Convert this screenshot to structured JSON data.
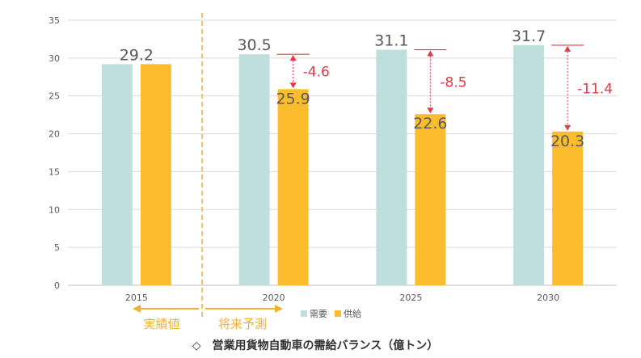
{
  "chart_data": {
    "type": "bar",
    "title": "◇　営業用貨物自動車の需給バランス（億トン）",
    "categories": [
      "2015",
      "2020",
      "2025",
      "2030"
    ],
    "series": [
      {
        "name": "需要",
        "color": "#bfdfde",
        "values": [
          29.2,
          30.5,
          31.1,
          31.7
        ]
      },
      {
        "name": "供給",
        "color": "#fbbd2d",
        "values": [
          29.2,
          25.9,
          22.6,
          20.3
        ]
      }
    ],
    "data_labels": [
      "29.2",
      "30.5",
      "25.9",
      "31.1",
      "22.6",
      "31.7",
      "20.3"
    ],
    "gaps": [
      {
        "category": "2020",
        "value": -4.6,
        "label": "-4.6"
      },
      {
        "category": "2025",
        "value": -8.5,
        "label": "-8.5"
      },
      {
        "category": "2030",
        "value": -11.4,
        "label": "-11.4"
      }
    ],
    "y_ticks": [
      "0",
      "5",
      "10",
      "15",
      "20",
      "25",
      "30",
      "35"
    ],
    "ylim": [
      0,
      35
    ],
    "grid": true,
    "legend": [
      "需要",
      "供給"
    ],
    "annotations": {
      "actual": "実績値",
      "forecast": "将来予測"
    }
  },
  "colors": {
    "demand": "#bfdfde",
    "supply": "#fbbd2d",
    "gap": "#e03a45",
    "divider": "#f2b230",
    "grid": "#d9d9d9"
  }
}
